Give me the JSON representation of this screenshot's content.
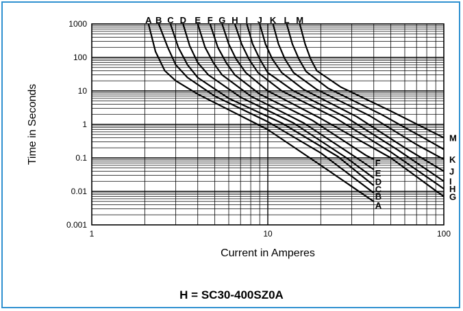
{
  "caption": "H = SC30-400SZ0A",
  "colors": {
    "frame": "#2e90d0",
    "curve": "#000000",
    "grid": "#000000"
  },
  "chart_data": {
    "type": "line",
    "xlabel": "Current in Amperes",
    "ylabel": "Time in Seconds",
    "x_scale": "log",
    "y_scale": "log",
    "xlim": [
      1,
      100
    ],
    "ylim": [
      0.001,
      1000
    ],
    "x_ticks": [
      "1",
      "10",
      "100"
    ],
    "y_ticks": [
      "1000",
      "100",
      "10",
      "1",
      "0.1",
      "0.01",
      "0.001"
    ],
    "grid": true,
    "series": [
      {
        "name": "A",
        "x": [
          2.1,
          2.3,
          2.6,
          3.0,
          4.0,
          10,
          20,
          40
        ],
        "y": [
          1000,
          150,
          40,
          20,
          8,
          0.7,
          0.06,
          0.005
        ]
      },
      {
        "name": "B",
        "x": [
          2.4,
          2.7,
          3.0,
          3.5,
          5,
          10,
          20,
          40
        ],
        "y": [
          1000,
          200,
          60,
          25,
          7,
          1.2,
          0.14,
          0.009
        ]
      },
      {
        "name": "C",
        "x": [
          2.8,
          3.1,
          3.5,
          4.0,
          6,
          12,
          25,
          40
        ],
        "y": [
          1000,
          200,
          60,
          25,
          6,
          1.1,
          0.11,
          0.015
        ]
      },
      {
        "name": "D",
        "x": [
          3.3,
          3.6,
          4.0,
          4.6,
          7,
          14,
          28,
          40
        ],
        "y": [
          1000,
          220,
          70,
          30,
          6.5,
          1.1,
          0.1,
          0.025
        ]
      },
      {
        "name": "E",
        "x": [
          4.0,
          4.4,
          4.9,
          5.5,
          8,
          16,
          32,
          40
        ],
        "y": [
          1000,
          200,
          70,
          30,
          7,
          1.1,
          0.1,
          0.045
        ]
      },
      {
        "name": "F",
        "x": [
          4.7,
          5.2,
          5.8,
          6.5,
          9,
          18,
          36,
          40
        ],
        "y": [
          1000,
          200,
          70,
          30,
          8,
          1.3,
          0.12,
          0.09
        ]
      },
      {
        "name": "G",
        "x": [
          5.5,
          6.0,
          6.6,
          7.5,
          10,
          20,
          50,
          100
        ],
        "y": [
          1000,
          250,
          90,
          35,
          10,
          1.5,
          0.1,
          0.007
        ]
      },
      {
        "name": "H",
        "x": [
          6.5,
          7.1,
          7.8,
          8.8,
          12,
          24,
          50,
          100
        ],
        "y": [
          1000,
          250,
          90,
          35,
          10,
          1.6,
          0.15,
          0.012
        ]
      },
      {
        "name": "I",
        "x": [
          7.6,
          8.2,
          9.0,
          10.0,
          14,
          28,
          55,
          100
        ],
        "y": [
          1000,
          250,
          90,
          35,
          10,
          1.6,
          0.17,
          0.02
        ]
      },
      {
        "name": "J",
        "x": [
          9.0,
          9.7,
          10.6,
          12.0,
          16,
          32,
          60,
          100
        ],
        "y": [
          1000,
          250,
          90,
          35,
          11,
          1.7,
          0.2,
          0.04
        ]
      },
      {
        "name": "K",
        "x": [
          10.7,
          11.5,
          12.5,
          14.0,
          19,
          38,
          70,
          100
        ],
        "y": [
          1000,
          250,
          90,
          35,
          11,
          1.8,
          0.25,
          0.09
        ]
      },
      {
        "name": "L",
        "x": [
          12.8,
          13.8,
          15.0,
          16.5,
          22,
          44,
          80,
          100
        ],
        "y": [
          1000,
          250,
          90,
          38,
          12,
          2,
          0.35,
          0.18
        ]
      },
      {
        "name": "M",
        "x": [
          15.2,
          16.3,
          17.5,
          19.0,
          26,
          50,
          100
        ],
        "y": [
          1000,
          250,
          90,
          40,
          13,
          2.5,
          0.4
        ]
      }
    ],
    "top_labels": [
      "A",
      "B",
      "C",
      "D",
      "E",
      "F",
      "G",
      "H",
      "I",
      "J",
      "K",
      "L",
      "M"
    ],
    "right_labels_left": [
      "F",
      "E",
      "D",
      "C",
      "B",
      "A"
    ],
    "right_labels_right": [
      "M",
      "K",
      "J",
      "I",
      "H",
      "G"
    ]
  }
}
